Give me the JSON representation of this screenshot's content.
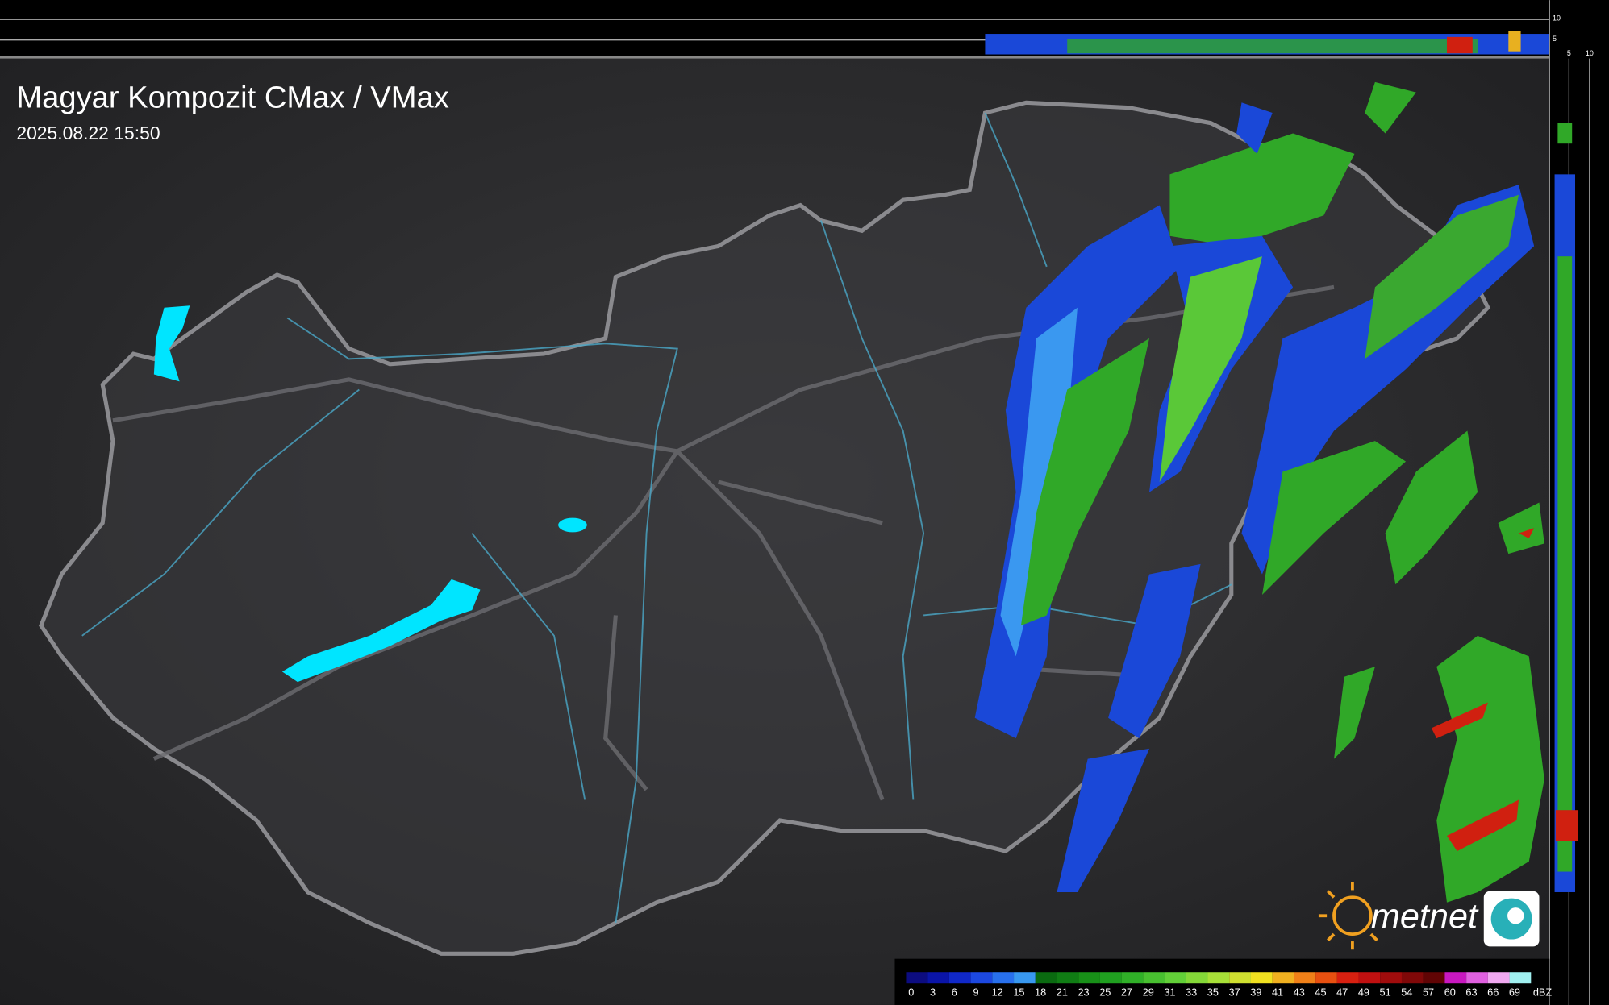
{
  "header": {
    "title": "Magyar Kompozit CMax / VMax",
    "timestamp": "2025.08.22 15:50"
  },
  "logo": {
    "text": "metnet"
  },
  "profile": {
    "top_ticks": [
      10,
      5
    ],
    "side_ticks": [
      5,
      10
    ]
  },
  "legend": {
    "labels": [
      0,
      3,
      6,
      9,
      12,
      15,
      18,
      21,
      23,
      25,
      27,
      29,
      31,
      33,
      35,
      37,
      39,
      41,
      43,
      45,
      47,
      49,
      51,
      54,
      57,
      60,
      63,
      66,
      69
    ],
    "unit": "dBZ",
    "colors": [
      "#0c0c80",
      "#0a14a8",
      "#1028c8",
      "#1c48e0",
      "#2870ec",
      "#3898f0",
      "#0a6a10",
      "#107d14",
      "#189018",
      "#20a020",
      "#30b028",
      "#48c030",
      "#62d038",
      "#84d838",
      "#a8e038",
      "#d0e030",
      "#f0e020",
      "#f0b020",
      "#f08018",
      "#e85010",
      "#d82010",
      "#c01010",
      "#a00c0c",
      "#800808",
      "#600404",
      "#c818c0",
      "#e060e0",
      "#f0a8f0",
      "#a0f0f0"
    ]
  }
}
